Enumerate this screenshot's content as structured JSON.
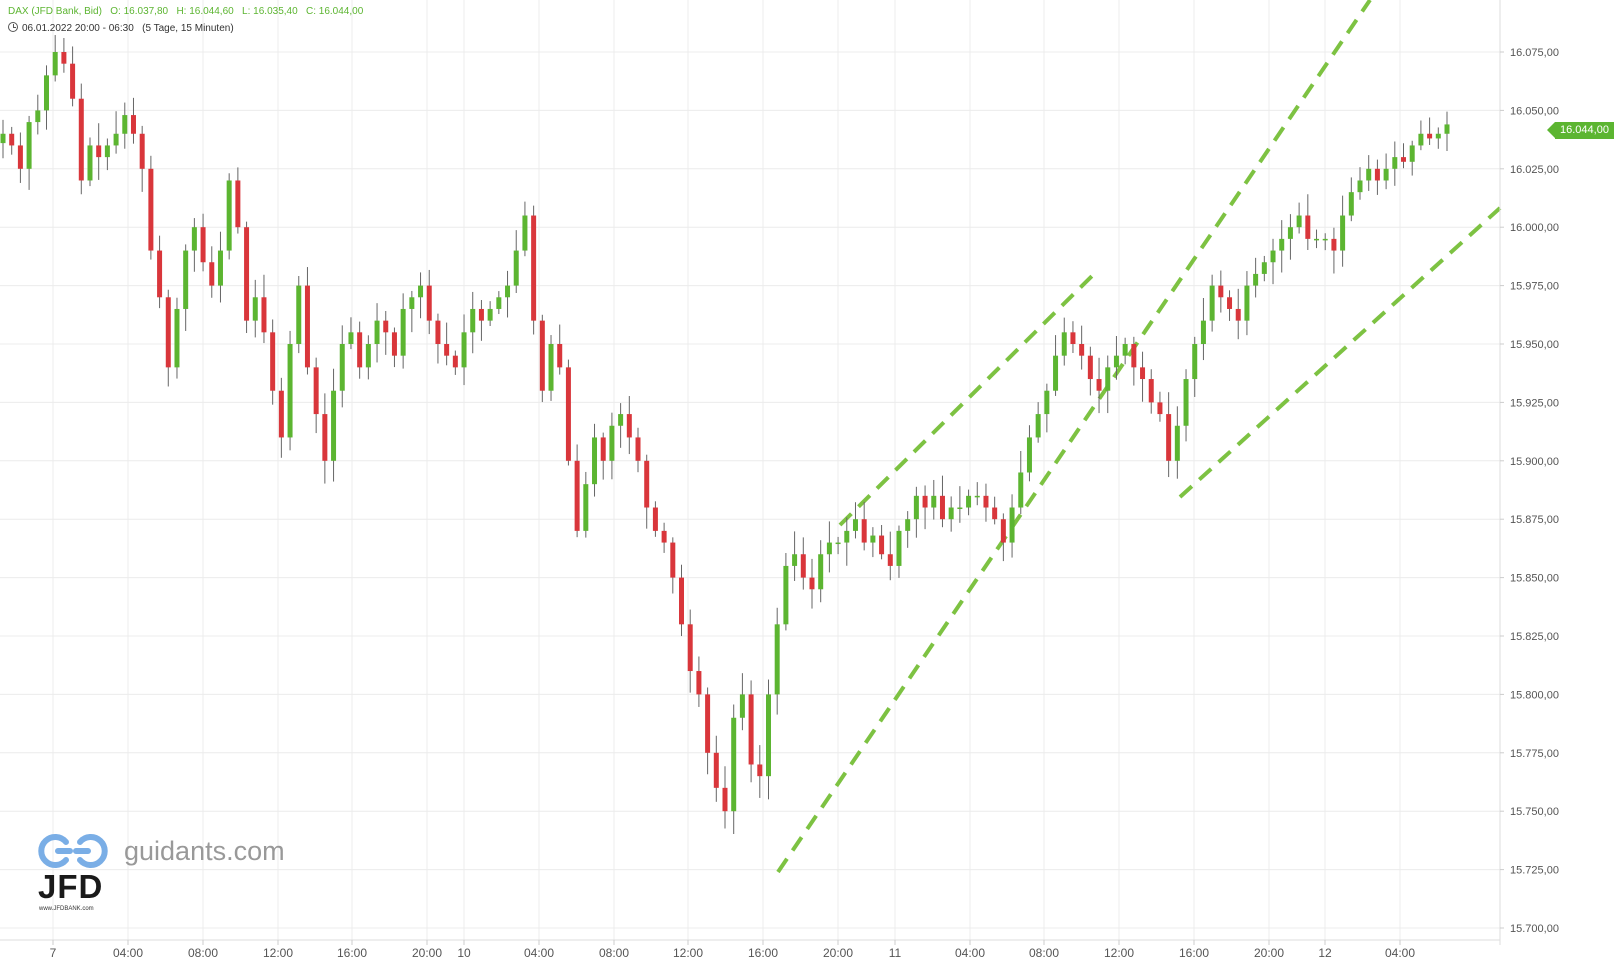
{
  "header": {
    "instrument": "DAX (JFD Bank, Bid)",
    "open": "O: 16.037,80",
    "high": "H: 16.044,60",
    "low": "L: 16.035,40",
    "close": "C: 16.044,00",
    "range": "06.01.2022 20:00 - 06:30",
    "period": "(5 Tage, 15 Minuten)"
  },
  "last_price_label": "16.044,00",
  "watermark": {
    "site": "guidants.com",
    "brand": "JFD",
    "url": "www.JFDBANK.com"
  },
  "colors": {
    "up": "#5cb531",
    "down": "#d9363b",
    "trendline": "#7dc242",
    "grid": "#ececec",
    "axis_text": "#555555"
  },
  "chart_data": {
    "type": "candlestick",
    "title": "",
    "xlabel": "",
    "ylabel": "",
    "ylim": [
      15700,
      16090
    ],
    "y_ticks": [
      "16.075,00",
      "16.050,00",
      "16.025,00",
      "16.000,00",
      "15.975,00",
      "15.950,00",
      "15.925,00",
      "15.900,00",
      "15.875,00",
      "15.850,00",
      "15.825,00",
      "15.800,00",
      "15.775,00",
      "15.750,00",
      "15.725,00",
      "15.700,00"
    ],
    "x_ticks": [
      "7",
      "04:00",
      "08:00",
      "12:00",
      "16:00",
      "20:00",
      "10",
      "04:00",
      "08:00",
      "12:00",
      "16:00",
      "20:00",
      "11",
      "04:00",
      "08:00",
      "12:00",
      "16:00",
      "20:00",
      "12",
      "04:00"
    ],
    "grid": true,
    "last_price": 16044.0,
    "series": [
      {
        "name": "DAX",
        "close_path": [
          16040,
          16035,
          16025,
          16045,
          16050,
          16065,
          16075,
          16070,
          16055,
          16020,
          16035,
          16030,
          16035,
          16040,
          16048,
          16040,
          16025,
          15990,
          15970,
          15940,
          15965,
          15990,
          16000,
          15985,
          15975,
          15990,
          16020,
          16000,
          15960,
          15970,
          15955,
          15930,
          15910,
          15950,
          15975,
          15940,
          15920,
          15900,
          15930,
          15950,
          15955,
          15940,
          15950,
          15960,
          15955,
          15945,
          15965,
          15970,
          15975,
          15960,
          15950,
          15945,
          15940,
          15955,
          15965,
          15960,
          15965,
          15970,
          15975,
          15990,
          16005,
          15960,
          15930,
          15950,
          15940,
          15900,
          15870,
          15890,
          15910,
          15900,
          15915,
          15920,
          15910,
          15900,
          15880,
          15870,
          15865,
          15850,
          15830,
          15810,
          15800,
          15775,
          15760,
          15750,
          15790,
          15800,
          15770,
          15765,
          15800,
          15830,
          15855,
          15860,
          15850,
          15845,
          15860,
          15865,
          15865,
          15870,
          15875,
          15865,
          15868,
          15860,
          15855,
          15870,
          15875,
          15885,
          15880,
          15885,
          15875,
          15880,
          15880,
          15885,
          15885,
          15880,
          15875,
          15865,
          15880,
          15895,
          15910,
          15920,
          15930,
          15945,
          15955,
          15950,
          15945,
          15935,
          15930,
          15940,
          15945,
          15950,
          15940,
          15935,
          15925,
          15920,
          15900,
          15915,
          15935,
          15950,
          15960,
          15975,
          15970,
          15965,
          15960,
          15975,
          15980,
          15985,
          15990,
          15995,
          16000,
          16005,
          15995,
          15995,
          15995,
          15990,
          16005,
          16015,
          16020,
          16025,
          16020,
          16025,
          16030,
          16028,
          16035,
          16040,
          16038,
          16040,
          16044
        ]
      }
    ],
    "trendlines": [
      {
        "from": [
          "16:00 (10)",
          15725
        ],
        "to": [
          "04:30 (12)",
          16082
        ],
        "style": "dashed"
      },
      {
        "from": [
          "20:00 (10)",
          15875
        ],
        "to": [
          "20:00 (11)",
          15983
        ],
        "style": "dashed",
        "upper": true
      },
      {
        "from": [
          "15:00 (11)",
          15890
        ],
        "to": [
          "08:00 (12)",
          16010
        ],
        "style": "dashed"
      }
    ],
    "legend": "none"
  }
}
